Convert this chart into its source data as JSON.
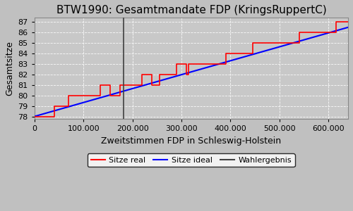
{
  "title": "BTW1990: Gesamtmandate FDP (KringsRuppertC)",
  "xlabel": "Zweitstimmen FDP in Schleswig-Holstein",
  "ylabel": "Gesamtsitze",
  "fig_background_color": "#c0c0c0",
  "plot_background_color": "#c8c8c8",
  "xlim": [
    0,
    640000
  ],
  "ylim": [
    77.8,
    87.4
  ],
  "yticks": [
    78,
    79,
    80,
    81,
    82,
    83,
    84,
    85,
    86,
    87
  ],
  "xticks": [
    0,
    100000,
    200000,
    300000,
    400000,
    500000,
    600000
  ],
  "wahlergebnis_x": 182000,
  "ideal_x0": 0,
  "ideal_y0": 78.05,
  "ideal_x1": 640000,
  "ideal_y1": 86.45,
  "real_x": [
    0,
    40000,
    40000,
    70000,
    70000,
    100000,
    100000,
    135000,
    135000,
    155000,
    155000,
    175000,
    175000,
    220000,
    220000,
    240000,
    240000,
    255000,
    255000,
    270000,
    270000,
    290000,
    290000,
    310000,
    310000,
    315000,
    315000,
    340000,
    340000,
    355000,
    355000,
    390000,
    390000,
    410000,
    410000,
    445000,
    445000,
    475000,
    475000,
    510000,
    510000,
    540000,
    540000,
    565000,
    565000,
    590000,
    590000,
    615000,
    615000,
    640000
  ],
  "real_y": [
    78,
    78,
    79,
    79,
    80,
    80,
    80,
    80,
    81,
    81,
    80,
    80,
    81,
    81,
    82,
    82,
    81,
    81,
    82,
    82,
    82,
    82,
    83,
    83,
    82,
    82,
    83,
    83,
    83,
    83,
    83,
    83,
    84,
    84,
    84,
    84,
    85,
    85,
    85,
    85,
    85,
    85,
    86,
    86,
    86,
    86,
    86,
    86,
    87,
    87
  ],
  "legend_labels": [
    "Sitze real",
    "Sitze ideal",
    "Wahlergebnis"
  ],
  "legend_colors": [
    "#ff0000",
    "#0000ff",
    "#404040"
  ],
  "title_fontsize": 11,
  "label_fontsize": 9,
  "tick_fontsize": 8
}
